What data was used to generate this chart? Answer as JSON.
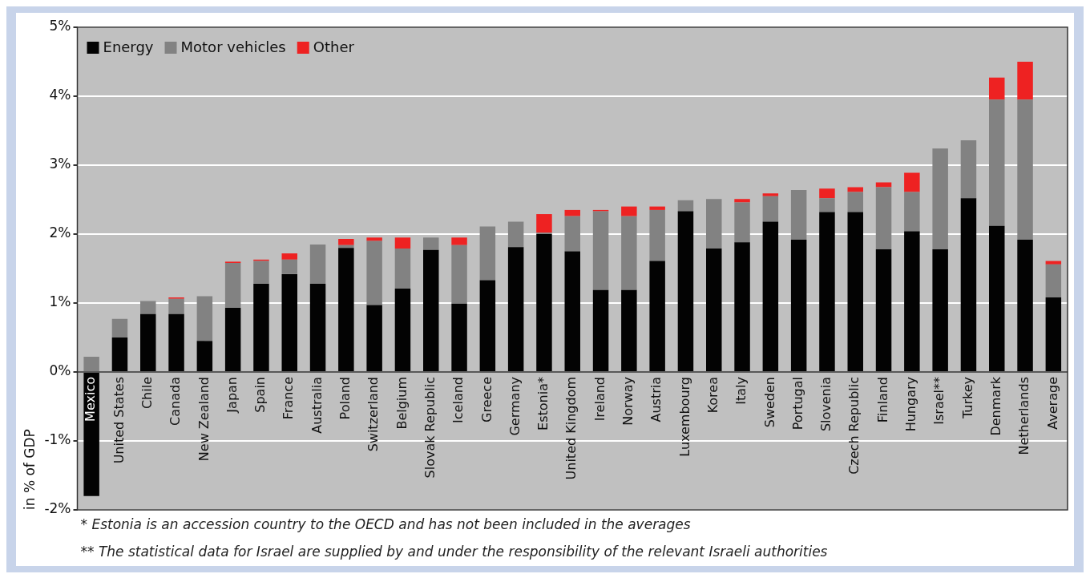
{
  "chart_data": {
    "type": "bar",
    "stacked": true,
    "ylabel": "in % of GDP",
    "categories": [
      "Mexico",
      "United States",
      "Chile",
      "Canada",
      "New Zealand",
      "Japan",
      "Spain",
      "France",
      "Australia",
      "Poland",
      "Switzerland",
      "Belgium",
      "Slovak Republic",
      "Iceland",
      "Greece",
      "Germany",
      "Estonia*",
      "United Kingdom",
      "Ireland",
      "Norway",
      "Austria",
      "Luxembourg",
      "Korea",
      "Italy",
      "Sweden",
      "Portugal",
      "Slovenia",
      "Czech Republic",
      "Finland",
      "Hungary",
      "Israel**",
      "Turkey",
      "Denmark",
      "Netherlands",
      "Average"
    ],
    "series": [
      {
        "name": "Energy",
        "color": "#030303",
        "values": [
          -1.8,
          0.5,
          0.84,
          0.84,
          0.45,
          0.93,
          1.28,
          1.42,
          1.28,
          1.8,
          0.97,
          1.21,
          1.77,
          0.99,
          1.33,
          1.81,
          2.0,
          1.75,
          1.19,
          1.19,
          1.61,
          2.33,
          1.79,
          1.88,
          2.18,
          1.92,
          2.32,
          2.32,
          1.78,
          2.04,
          1.78,
          2.52,
          2.12,
          1.92,
          1.08
        ]
      },
      {
        "name": "Motor vehicles",
        "color": "#828282",
        "values": [
          0.22,
          0.27,
          0.19,
          0.22,
          0.65,
          0.65,
          0.33,
          0.21,
          0.57,
          0.04,
          0.93,
          0.58,
          0.18,
          0.85,
          0.78,
          0.37,
          0.02,
          0.51,
          1.14,
          1.07,
          0.74,
          0.16,
          0.72,
          0.58,
          0.37,
          0.72,
          0.2,
          0.29,
          0.9,
          0.57,
          1.46,
          0.84,
          1.83,
          2.03,
          0.48
        ]
      },
      {
        "name": "Other",
        "color": "#ee2222",
        "values": [
          0,
          0,
          0,
          0.02,
          0,
          0.02,
          0.02,
          0.09,
          0,
          0.09,
          0.05,
          0.16,
          0,
          0.11,
          0,
          0,
          0.27,
          0.09,
          0.02,
          0.14,
          0.05,
          0,
          0,
          0.05,
          0.04,
          0,
          0.14,
          0.07,
          0.07,
          0.28,
          0,
          0,
          0.32,
          0.55,
          0.05
        ]
      }
    ],
    "ylim": [
      -2,
      5
    ],
    "yticks": [
      {
        "value": -2,
        "label": "-2%"
      },
      {
        "value": -1,
        "label": "-1%"
      },
      {
        "value": 0,
        "label": "0%"
      },
      {
        "value": 1,
        "label": "1%"
      },
      {
        "value": 2,
        "label": "2%"
      },
      {
        "value": 3,
        "label": "3%"
      },
      {
        "value": 4,
        "label": "4%"
      },
      {
        "value": 5,
        "label": "5%"
      }
    ],
    "grid": "y",
    "legend": "top left",
    "annotations": [
      "* Estonia is an accession country to the OECD and has not been included in the averages",
      "** The statistical data for Israel are supplied by and under the responsibility of the relevant Israeli authorities"
    ]
  }
}
